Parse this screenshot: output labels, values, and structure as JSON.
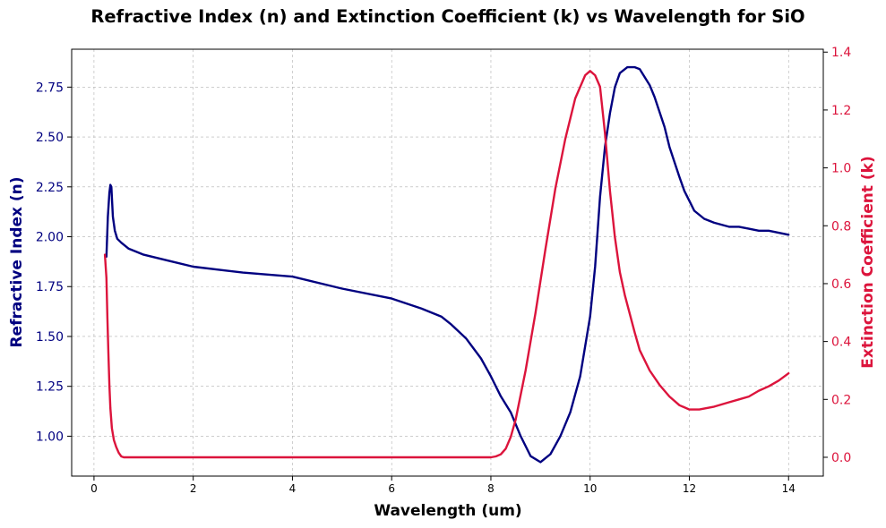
{
  "chart_data": {
    "type": "line",
    "title": "Refractive Index (n) and Extinction Coefficient (k) vs Wavelength for SiO",
    "xlabel": "Wavelength (um)",
    "ylabel_left": "Refractive Index (n)",
    "ylabel_right": "Extinction Coefficient (k)",
    "xlim": [
      -0.45,
      14.7
    ],
    "ylim_left": [
      0.8,
      2.94
    ],
    "ylim_right": [
      -0.065,
      1.41
    ],
    "xticks": [
      0,
      2,
      4,
      6,
      8,
      10,
      12,
      14
    ],
    "xtick_labels": [
      "0",
      "2",
      "4",
      "6",
      "8",
      "10",
      "12",
      "14"
    ],
    "yticks_left": [
      1.0,
      1.25,
      1.5,
      1.75,
      2.0,
      2.25,
      2.5,
      2.75
    ],
    "ytick_left_labels": [
      "1.00",
      "1.25",
      "1.50",
      "1.75",
      "2.00",
      "2.25",
      "2.50",
      "2.75"
    ],
    "yticks_right": [
      0.0,
      0.2,
      0.4,
      0.6,
      0.8,
      1.0,
      1.2,
      1.4
    ],
    "ytick_right_labels": [
      "0.0",
      "0.2",
      "0.4",
      "0.6",
      "0.8",
      "1.0",
      "1.2",
      "1.4"
    ],
    "grid": true,
    "series": [
      {
        "name": "n",
        "axis": "left",
        "color": "#000080",
        "x": [
          0.25,
          0.28,
          0.31,
          0.33,
          0.35,
          0.38,
          0.42,
          0.47,
          0.55,
          0.7,
          0.9,
          1.0,
          1.5,
          2.0,
          3.0,
          4.0,
          5.0,
          6.0,
          6.6,
          7.0,
          7.2,
          7.5,
          7.8,
          8.0,
          8.2,
          8.4,
          8.6,
          8.8,
          9.0,
          9.2,
          9.4,
          9.6,
          9.8,
          10.0,
          10.1,
          10.2,
          10.3,
          10.4,
          10.5,
          10.6,
          10.75,
          10.9,
          11.0,
          11.2,
          11.3,
          11.5,
          11.6,
          11.8,
          11.9,
          12.0,
          12.1,
          12.3,
          12.5,
          12.8,
          13.0,
          13.2,
          13.4,
          13.6,
          14.0
        ],
        "y": [
          1.9,
          2.1,
          2.22,
          2.26,
          2.25,
          2.1,
          2.03,
          1.99,
          1.97,
          1.94,
          1.92,
          1.91,
          1.88,
          1.85,
          1.82,
          1.8,
          1.74,
          1.69,
          1.64,
          1.6,
          1.56,
          1.49,
          1.39,
          1.3,
          1.2,
          1.12,
          1.0,
          0.9,
          0.87,
          0.91,
          1.0,
          1.12,
          1.3,
          1.6,
          1.85,
          2.2,
          2.45,
          2.62,
          2.75,
          2.82,
          2.85,
          2.85,
          2.84,
          2.76,
          2.7,
          2.55,
          2.45,
          2.3,
          2.23,
          2.18,
          2.13,
          2.09,
          2.07,
          2.05,
          2.05,
          2.04,
          2.03,
          2.03,
          2.01
        ]
      },
      {
        "name": "k",
        "axis": "right",
        "color": "#DC143C",
        "x": [
          0.22,
          0.25,
          0.27,
          0.29,
          0.31,
          0.33,
          0.36,
          0.4,
          0.45,
          0.5,
          0.55,
          0.6,
          1.0,
          2.0,
          4.0,
          6.0,
          7.0,
          7.8,
          8.0,
          8.1,
          8.2,
          8.3,
          8.4,
          8.5,
          8.7,
          8.9,
          9.1,
          9.3,
          9.5,
          9.7,
          9.9,
          10.0,
          10.1,
          10.2,
          10.3,
          10.4,
          10.5,
          10.6,
          10.7,
          10.9,
          11.0,
          11.2,
          11.4,
          11.6,
          11.8,
          12.0,
          12.2,
          12.5,
          12.8,
          13.0,
          13.2,
          13.4,
          13.6,
          13.8,
          14.0
        ],
        "y": [
          0.7,
          0.62,
          0.48,
          0.36,
          0.25,
          0.17,
          0.1,
          0.06,
          0.035,
          0.015,
          0.003,
          0.0,
          0.0,
          0.0,
          0.0,
          0.0,
          0.0,
          0.0,
          0.0,
          0.003,
          0.01,
          0.03,
          0.07,
          0.13,
          0.3,
          0.5,
          0.72,
          0.93,
          1.1,
          1.24,
          1.32,
          1.335,
          1.32,
          1.28,
          1.12,
          0.92,
          0.76,
          0.64,
          0.56,
          0.43,
          0.37,
          0.3,
          0.25,
          0.21,
          0.18,
          0.165,
          0.165,
          0.175,
          0.19,
          0.2,
          0.21,
          0.23,
          0.245,
          0.265,
          0.29
        ]
      }
    ]
  }
}
